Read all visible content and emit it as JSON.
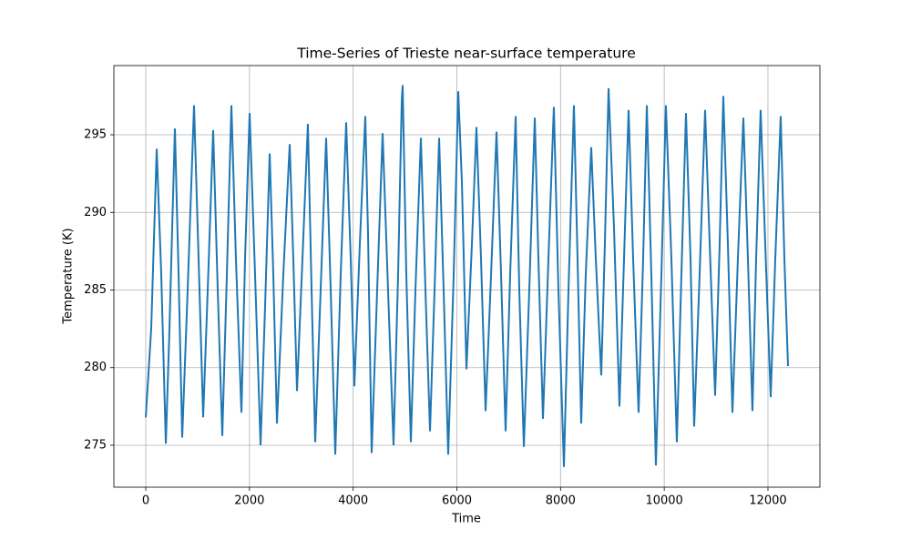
{
  "chart_data": {
    "type": "line",
    "title": "Time-Series of Trieste near-surface temperature",
    "x_label": "Time",
    "y_label": "Temperature (K)",
    "x": [
      0,
      105,
      211,
      299,
      387,
      457,
      562,
      633,
      703,
      808,
      931,
      1019,
      1107,
      1195,
      1300,
      1388,
      1476,
      1564,
      1652,
      1739,
      1845,
      1915,
      2003,
      2108,
      2214,
      2302,
      2390,
      2460,
      2530,
      2653,
      2776,
      2846,
      2917,
      3022,
      3127,
      3198,
      3268,
      3373,
      3479,
      3567,
      3655,
      3760,
      3865,
      3953,
      4023,
      4129,
      4234,
      4287,
      4357,
      4463,
      4568,
      4673,
      4779,
      4867,
      4937,
      4955,
      5025,
      5113,
      5201,
      5306,
      5394,
      5482,
      5570,
      5658,
      5745,
      5833,
      5939,
      6027,
      6097,
      6185,
      6291,
      6378,
      6466,
      6554,
      6660,
      6765,
      6853,
      6940,
      7028,
      7134,
      7204,
      7292,
      7397,
      7503,
      7573,
      7661,
      7766,
      7871,
      7959,
      8065,
      8153,
      8258,
      8328,
      8398,
      8486,
      8592,
      8680,
      8785,
      8855,
      8926,
      9031,
      9136,
      9224,
      9312,
      9400,
      9505,
      9593,
      9664,
      9751,
      9839,
      9945,
      10032,
      10138,
      10243,
      10331,
      10419,
      10507,
      10577,
      10682,
      10788,
      10876,
      10981,
      11069,
      11139,
      11227,
      11315,
      11420,
      11526,
      11614,
      11701,
      11772,
      11859,
      11947,
      12053,
      12141,
      12246,
      12317,
      12387
    ],
    "series": [
      {
        "name": "Temperature",
        "color": "#1f77b4",
        "values": [
          276.8,
          282.5,
          294.1,
          286,
          275.1,
          282.5,
          295.4,
          286,
          275.5,
          285,
          296.9,
          287,
          276.8,
          285,
          295.3,
          285,
          275.6,
          286,
          296.9,
          287,
          277.1,
          287,
          296.4,
          286,
          275.0,
          284,
          293.8,
          286,
          276.4,
          286,
          294.4,
          287,
          278.5,
          287,
          295.7,
          285,
          275.2,
          285,
          294.8,
          285,
          274.4,
          286,
          295.8,
          287,
          278.8,
          288,
          296.2,
          288.6,
          274.5,
          285,
          295.1,
          285,
          275.0,
          286,
          297.2,
          298.2,
          286,
          275.2,
          285,
          294.8,
          285,
          275.9,
          285,
          294.8,
          285,
          274.4,
          286,
          297.8,
          292,
          279.9,
          288,
          295.5,
          287,
          277.2,
          286,
          295.2,
          286,
          275.9,
          286,
          296.2,
          285,
          274.9,
          285,
          296.1,
          287,
          276.7,
          287,
          296.8,
          285,
          273.6,
          285,
          296.9,
          287,
          276.4,
          286,
          294.2,
          287,
          279.5,
          288,
          298.0,
          289,
          277.5,
          287,
          296.6,
          287,
          277.1,
          287,
          296.9,
          286,
          273.7,
          286,
          296.9,
          287,
          275.2,
          286,
          296.4,
          287,
          276.2,
          286,
          296.6,
          288,
          278.2,
          288,
          297.5,
          288,
          277.1,
          287,
          296.1,
          287,
          277.2,
          287,
          296.6,
          288,
          278.1,
          287,
          296.2,
          287,
          280.1
        ]
      }
    ],
    "xlim": [
      -615,
      13002
    ],
    "ylim": [
      272.3,
      299.46
    ],
    "xticks": [
      0,
      2000,
      4000,
      6000,
      8000,
      10000,
      12000
    ],
    "yticks": [
      275,
      280,
      285,
      290,
      295
    ],
    "grid": true
  }
}
